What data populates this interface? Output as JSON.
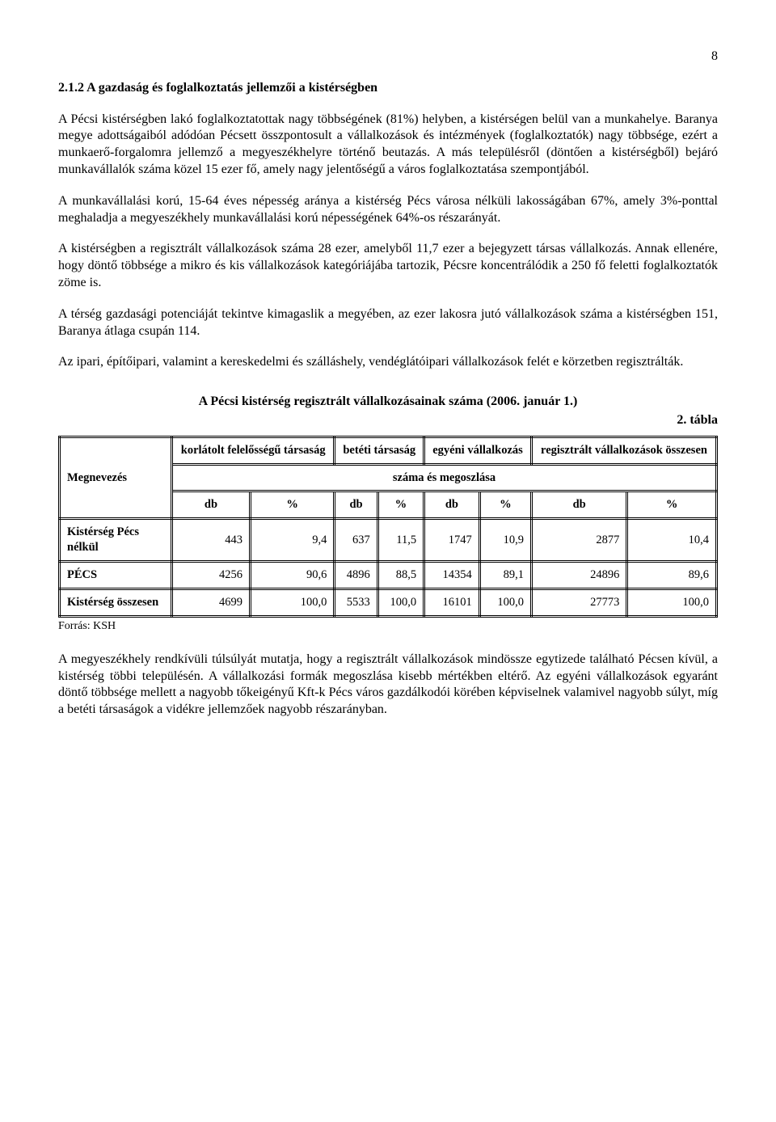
{
  "page_number": "8",
  "heading": "2.1.2 A gazdaság és foglalkoztatás jellemzői a kistérségben",
  "paragraphs": {
    "p1": "A Pécsi kistérségben lakó foglalkoztatottak nagy többségének (81%) helyben, a kistérségen belül van a munkahelye. Baranya megye adottságaiból adódóan Pécsett összpontosult a vállalkozások és intézmények (foglalkoztatók) nagy többsége, ezért a munkaerő-forgalomra jellemző a megyeszékhelyre történő beutazás. A más településről (döntően a kistérségből) bejáró munkavállalók száma közel 15 ezer fő, amely nagy jelentőségű a város foglalkoztatása szempontjából.",
    "p2": "A munkavállalási korú, 15-64 éves népesség aránya a kistérség Pécs városa nélküli lakosságában 67%, amely 3%-ponttal meghaladja a megyeszékhely munkavállalási korú népességének 64%-os részarányát.",
    "p3": "A kistérségben a regisztrált vállalkozások száma 28 ezer, amelyből 11,7 ezer a  bejegyzett társas vállalkozás. Annak ellenére, hogy döntő többsége a mikro és kis vállalkozások kategóriájába tartozik, Pécsre koncentrálódik a 250 fő feletti foglalkoztatók zöme is.",
    "p4": "A térség gazdasági potenciáját tekintve kimagaslik a megyében, az ezer lakosra jutó vállalkozások száma a kistérségben 151, Baranya átlaga csupán 114.",
    "p5": "Az ipari, építőipari, valamint a kereskedelmi és szálláshely, vendéglátóipari vállalkozások felét e körzetben regisztrálták.",
    "p6": "A megyeszékhely rendkívüli túlsúlyát mutatja, hogy a regisztrált vállalkozások mindössze egytizede található Pécsen kívül, a kistérség többi településén. A vállalkozási formák megoszlása kisebb mértékben eltérő. Az egyéni vállalkozások egyaránt döntő többsége mellett a nagyobb tőkeigényű Kft-k Pécs város gazdálkodói körében képviselnek valamivel nagyobb súlyt, míg a betéti társaságok a vidékre jellemzőek nagyobb részarányban."
  },
  "table": {
    "title": "A Pécsi kistérség regisztrált vállalkozásainak száma (2006. január 1.)",
    "label": "2. tábla",
    "headers": {
      "megnevezes": "Megnevezés",
      "kft": "korlátolt felelősségű társaság",
      "bt": "betéti társaság",
      "egyeni": "egyéni vállalkozás",
      "regisztralt": "regisztrált vállalkozások összesen",
      "sub": "száma és megoszlása",
      "db": "db",
      "pct": "%"
    },
    "rows": [
      {
        "label": "Kistérség Pécs nélkül",
        "kft_db": "443",
        "kft_pct": "9,4",
        "bt_db": "637",
        "bt_pct": "11,5",
        "egy_db": "1747",
        "egy_pct": "10,9",
        "reg_db": "2877",
        "reg_pct": "10,4"
      },
      {
        "label": "PÉCS",
        "kft_db": "4256",
        "kft_pct": "90,6",
        "bt_db": "4896",
        "bt_pct": "88,5",
        "egy_db": "14354",
        "egy_pct": "89,1",
        "reg_db": "24896",
        "reg_pct": "89,6"
      },
      {
        "label": "Kistérség összesen",
        "kft_db": "4699",
        "kft_pct": "100,0",
        "bt_db": "5533",
        "bt_pct": "100,0",
        "egy_db": "16101",
        "egy_pct": "100,0",
        "reg_db": "27773",
        "reg_pct": "100,0"
      }
    ],
    "source": "Forrás: KSH"
  }
}
